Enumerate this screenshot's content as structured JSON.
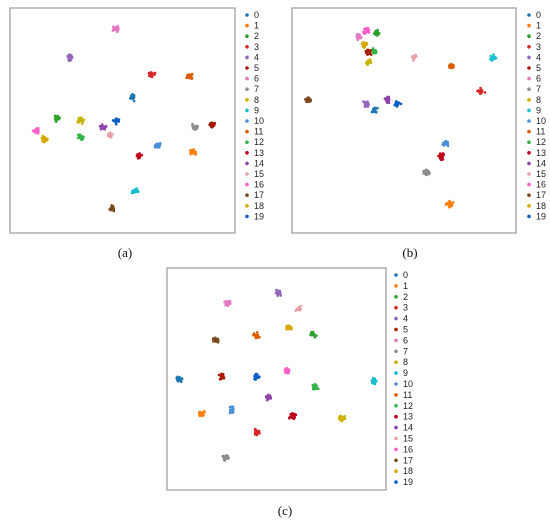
{
  "colors": [
    "#1f78b4",
    "#ff7f0e",
    "#2ca02c",
    "#d62728",
    "#9467bd",
    "#a61c00",
    "#e377c2",
    "#8c8c8c",
    "#c9b300",
    "#17becf",
    "#4a90d9",
    "#d95f02",
    "#33b54a",
    "#c0001a",
    "#8e44ad",
    "#e8a0a8",
    "#ff5fc8",
    "#7b4a1e",
    "#d4a800",
    "#0a5fc7"
  ],
  "legend_labels": [
    "0",
    "1",
    "2",
    "3",
    "4",
    "5",
    "6",
    "7",
    "8",
    "9",
    "10",
    "11",
    "12",
    "13",
    "14",
    "15",
    "16",
    "17",
    "18",
    "19"
  ],
  "chart_data": [
    {
      "type": "scatter",
      "caption": "(a)",
      "title": "",
      "xlabel": "",
      "ylabel": "",
      "xlim": [
        0,
        1
      ],
      "ylim": [
        0,
        1
      ],
      "grid": false,
      "legend": "right",
      "series": [
        {
          "name": "0",
          "centroids": [
            [
              0.55,
              0.61
            ]
          ]
        },
        {
          "name": "1",
          "centroids": [
            [
              0.84,
              0.35
            ]
          ]
        },
        {
          "name": "2",
          "centroids": [
            [
              0.19,
              0.51
            ]
          ]
        },
        {
          "name": "3",
          "centroids": [
            [
              0.64,
              0.72
            ]
          ]
        },
        {
          "name": "4",
          "centroids": [
            [
              0.25,
              0.8
            ]
          ]
        },
        {
          "name": "5",
          "centroids": [
            [
              0.93,
              0.48
            ]
          ]
        },
        {
          "name": "6",
          "centroids": [
            [
              0.47,
              0.94
            ]
          ]
        },
        {
          "name": "7",
          "centroids": [
            [
              0.85,
              0.47
            ]
          ]
        },
        {
          "name": "8",
          "centroids": [
            [
              0.3,
              0.5
            ]
          ]
        },
        {
          "name": "9",
          "centroids": [
            [
              0.56,
              0.16
            ]
          ]
        },
        {
          "name": "10",
          "centroids": [
            [
              0.67,
              0.38
            ]
          ]
        },
        {
          "name": "11",
          "centroids": [
            [
              0.82,
              0.71
            ]
          ]
        },
        {
          "name": "12",
          "centroids": [
            [
              0.3,
              0.42
            ]
          ]
        },
        {
          "name": "13",
          "centroids": [
            [
              0.58,
              0.33
            ]
          ]
        },
        {
          "name": "14",
          "centroids": [
            [
              0.41,
              0.47
            ]
          ]
        },
        {
          "name": "15",
          "centroids": [
            [
              0.44,
              0.43
            ]
          ]
        },
        {
          "name": "16",
          "centroids": [
            [
              0.09,
              0.45
            ]
          ]
        },
        {
          "name": "17",
          "centroids": [
            [
              0.45,
              0.08
            ]
          ]
        },
        {
          "name": "18",
          "centroids": [
            [
              0.13,
              0.41
            ]
          ]
        },
        {
          "name": "19",
          "centroids": [
            [
              0.47,
              0.5
            ]
          ]
        }
      ]
    },
    {
      "type": "scatter",
      "caption": "(b)",
      "title": "",
      "xlabel": "",
      "ylabel": "",
      "xlim": [
        0,
        1
      ],
      "ylim": [
        0,
        1
      ],
      "grid": false,
      "legend": "right",
      "series": [
        {
          "name": "0",
          "centroids": [
            [
              0.36,
              0.55
            ]
          ]
        },
        {
          "name": "1",
          "centroids": [
            [
              0.72,
              0.1
            ]
          ]
        },
        {
          "name": "2",
          "centroids": [
            [
              0.37,
              0.92
            ]
          ]
        },
        {
          "name": "3",
          "centroids": [
            [
              0.87,
              0.64
            ]
          ]
        },
        {
          "name": "4",
          "centroids": [
            [
              0.32,
              0.58
            ]
          ]
        },
        {
          "name": "5",
          "centroids": [
            [
              0.33,
              0.83
            ]
          ]
        },
        {
          "name": "6",
          "centroids": [
            [
              0.28,
              0.9
            ]
          ]
        },
        {
          "name": "7",
          "centroids": [
            [
              0.61,
              0.25
            ]
          ]
        },
        {
          "name": "8",
          "centroids": [
            [
              0.33,
              0.78
            ]
          ]
        },
        {
          "name": "9",
          "centroids": [
            [
              0.93,
              0.8
            ]
          ]
        },
        {
          "name": "10",
          "centroids": [
            [
              0.7,
              0.39
            ]
          ]
        },
        {
          "name": "11",
          "centroids": [
            [
              0.73,
              0.76
            ]
          ]
        },
        {
          "name": "12",
          "centroids": [
            [
              0.36,
              0.83
            ]
          ]
        },
        {
          "name": "13",
          "centroids": [
            [
              0.68,
              0.33
            ]
          ]
        },
        {
          "name": "14",
          "centroids": [
            [
              0.42,
              0.6
            ]
          ]
        },
        {
          "name": "15",
          "centroids": [
            [
              0.55,
              0.8
            ]
          ]
        },
        {
          "name": "16",
          "centroids": [
            [
              0.32,
              0.93
            ]
          ]
        },
        {
          "name": "17",
          "centroids": [
            [
              0.04,
              0.6
            ]
          ]
        },
        {
          "name": "18",
          "centroids": [
            [
              0.31,
              0.86
            ]
          ]
        },
        {
          "name": "19",
          "centroids": [
            [
              0.47,
              0.58
            ]
          ]
        }
      ]
    },
    {
      "type": "scatter",
      "caption": "(c)",
      "title": "",
      "xlabel": "",
      "ylabel": "",
      "xlim": [
        0,
        1
      ],
      "ylim": [
        0,
        1
      ],
      "grid": false,
      "legend": "right",
      "series": [
        {
          "name": "0",
          "centroids": [
            [
              0.02,
              0.5
            ]
          ]
        },
        {
          "name": "1",
          "centroids": [
            [
              0.13,
              0.33
            ]
          ]
        },
        {
          "name": "2",
          "centroids": [
            [
              0.68,
              0.72
            ]
          ]
        },
        {
          "name": "3",
          "centroids": [
            [
              0.4,
              0.24
            ]
          ]
        },
        {
          "name": "4",
          "centroids": [
            [
              0.51,
              0.92
            ]
          ]
        },
        {
          "name": "5",
          "centroids": [
            [
              0.23,
              0.51
            ]
          ]
        },
        {
          "name": "6",
          "centroids": [
            [
              0.26,
              0.87
            ]
          ]
        },
        {
          "name": "7",
          "centroids": [
            [
              0.25,
              0.12
            ]
          ]
        },
        {
          "name": "8",
          "centroids": [
            [
              0.82,
              0.31
            ]
          ]
        },
        {
          "name": "9",
          "centroids": [
            [
              0.98,
              0.49
            ]
          ]
        },
        {
          "name": "10",
          "centroids": [
            [
              0.28,
              0.35
            ]
          ]
        },
        {
          "name": "11",
          "centroids": [
            [
              0.4,
              0.71
            ]
          ]
        },
        {
          "name": "12",
          "centroids": [
            [
              0.69,
              0.46
            ]
          ]
        },
        {
          "name": "13",
          "centroids": [
            [
              0.58,
              0.32
            ]
          ]
        },
        {
          "name": "14",
          "centroids": [
            [
              0.46,
              0.41
            ]
          ]
        },
        {
          "name": "15",
          "centroids": [
            [
              0.61,
              0.84
            ]
          ]
        },
        {
          "name": "16",
          "centroids": [
            [
              0.55,
              0.54
            ]
          ]
        },
        {
          "name": "17",
          "centroids": [
            [
              0.2,
              0.69
            ]
          ]
        },
        {
          "name": "18",
          "centroids": [
            [
              0.56,
              0.75
            ]
          ]
        },
        {
          "name": "19",
          "centroids": [
            [
              0.4,
              0.51
            ]
          ]
        }
      ]
    }
  ]
}
